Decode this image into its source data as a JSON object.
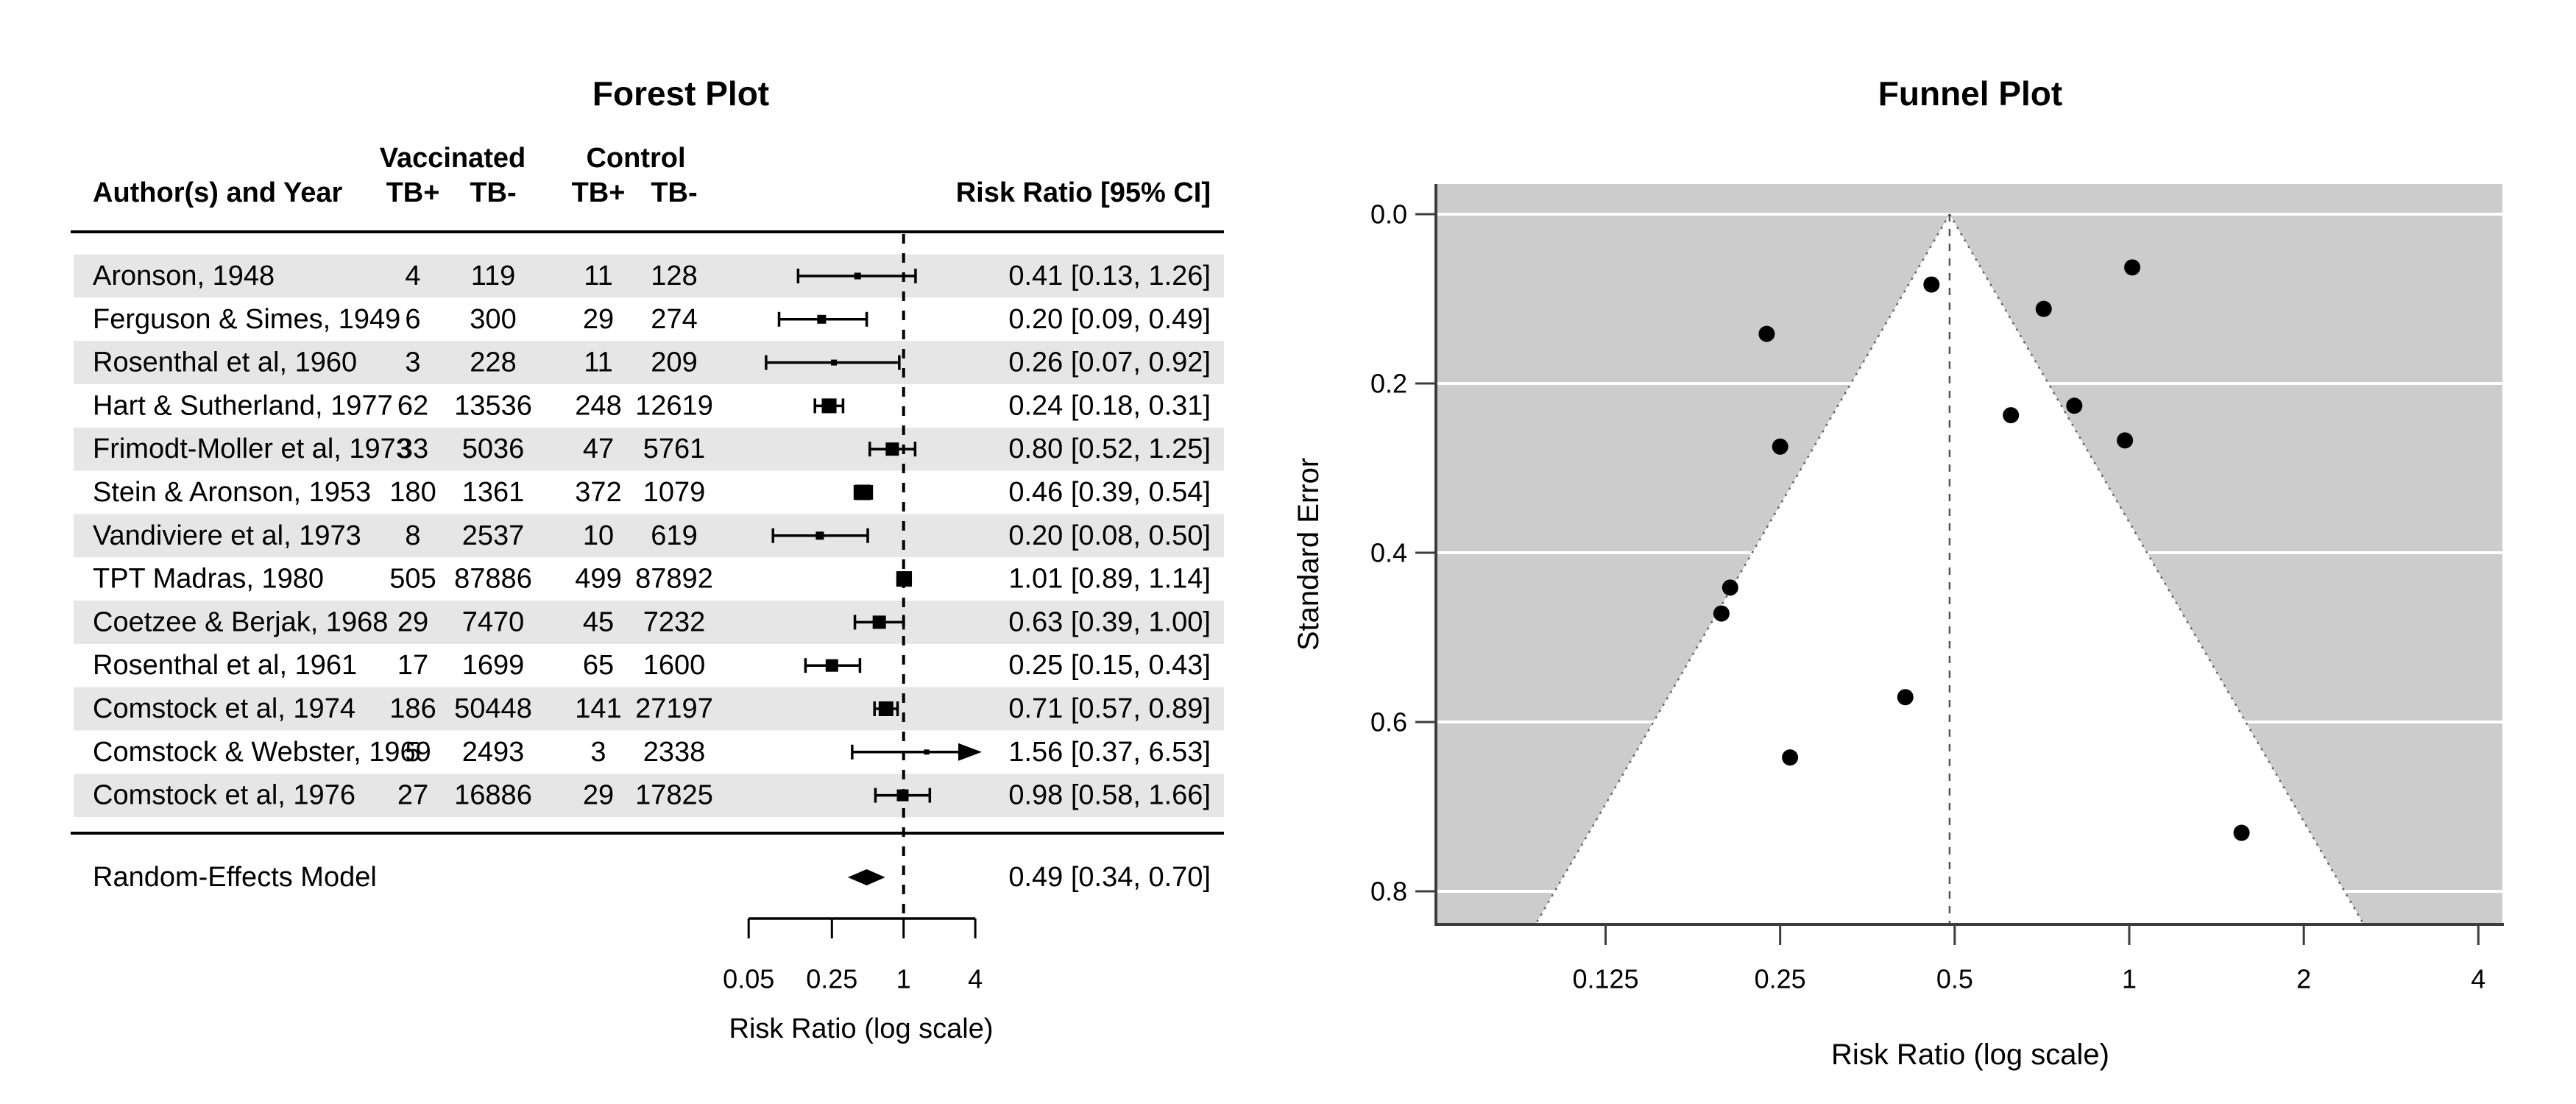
{
  "colors": {
    "background": "#ffffff",
    "stripe": "#e6e6e6",
    "funnel_bg": "#cccccc",
    "gridline": "#ffffff",
    "axis": "#000000",
    "funnel_axis": "#3c3c3c",
    "reference_line": "#555555",
    "funnel_edge": "#666666",
    "point": "#000000"
  },
  "chart_data": [
    {
      "type": "forest",
      "title": "Forest Plot",
      "xlabel": "Risk Ratio (log scale)",
      "xlim": [
        0.05,
        4
      ],
      "reference_value": 1,
      "legend_position": "none",
      "grid": false,
      "columns": {
        "author": "Author(s) and Year",
        "group1": "Vaccinated",
        "group2": "Control",
        "sub": [
          "TB+",
          "TB-",
          "TB+",
          "TB-"
        ],
        "effect": "Risk Ratio [95% CI]"
      },
      "x_ticks": [
        {
          "value": 0.05,
          "label": "0.05"
        },
        {
          "value": 0.25,
          "label": "0.25"
        },
        {
          "value": 1,
          "label": "1"
        },
        {
          "value": 4,
          "label": "4"
        }
      ],
      "studies": [
        {
          "author": "Aronson, 1948",
          "vac_tb_pos": 4,
          "vac_tb_neg": 119,
          "ctl_tb_pos": 11,
          "ctl_tb_neg": 128,
          "rr": 0.411,
          "ci_low": 0.13,
          "ci_high": 1.26,
          "effect_label": "0.41 [0.13, 1.26]",
          "size": 9,
          "arrow": false
        },
        {
          "author": "Ferguson & Simes, 1949",
          "vac_tb_pos": 6,
          "vac_tb_neg": 300,
          "ctl_tb_pos": 29,
          "ctl_tb_neg": 274,
          "rr": 0.205,
          "ci_low": 0.09,
          "ci_high": 0.49,
          "effect_label": "0.20 [0.09, 0.49]",
          "size": 12,
          "arrow": false
        },
        {
          "author": "Rosenthal et al, 1960",
          "vac_tb_pos": 3,
          "vac_tb_neg": 228,
          "ctl_tb_pos": 11,
          "ctl_tb_neg": 209,
          "rr": 0.26,
          "ci_low": 0.07,
          "ci_high": 0.92,
          "effect_label": "0.26 [0.07, 0.92]",
          "size": 8,
          "arrow": false
        },
        {
          "author": "Hart & Sutherland, 1977",
          "vac_tb_pos": 62,
          "vac_tb_neg": 13536,
          "ctl_tb_pos": 248,
          "ctl_tb_neg": 12619,
          "rr": 0.237,
          "ci_low": 0.18,
          "ci_high": 0.31,
          "effect_label": "0.24 [0.18, 0.31]",
          "size": 20,
          "arrow": false
        },
        {
          "author": "Frimodt-Moller et al, 1973",
          "vac_tb_pos": 33,
          "vac_tb_neg": 5036,
          "ctl_tb_pos": 47,
          "ctl_tb_neg": 5761,
          "rr": 0.804,
          "ci_low": 0.52,
          "ci_high": 1.25,
          "effect_label": "0.80 [0.52, 1.25]",
          "size": 18,
          "arrow": false
        },
        {
          "author": "Stein & Aronson, 1953",
          "vac_tb_pos": 180,
          "vac_tb_neg": 1361,
          "ctl_tb_pos": 372,
          "ctl_tb_neg": 1079,
          "rr": 0.456,
          "ci_low": 0.39,
          "ci_high": 0.54,
          "effect_label": "0.46 [0.39, 0.54]",
          "size": 21,
          "arrow": false
        },
        {
          "author": "Vandiviere et al, 1973",
          "vac_tb_pos": 8,
          "vac_tb_neg": 2537,
          "ctl_tb_pos": 10,
          "ctl_tb_neg": 619,
          "rr": 0.198,
          "ci_low": 0.08,
          "ci_high": 0.5,
          "effect_label": "0.20 [0.08, 0.50]",
          "size": 11,
          "arrow": false
        },
        {
          "author": "TPT Madras, 1980",
          "vac_tb_pos": 505,
          "vac_tb_neg": 87886,
          "ctl_tb_pos": 499,
          "ctl_tb_neg": 87892,
          "rr": 1.012,
          "ci_low": 0.89,
          "ci_high": 1.14,
          "effect_label": "1.01 [0.89, 1.14]",
          "size": 21,
          "arrow": false
        },
        {
          "author": "Coetzee & Berjak, 1968",
          "vac_tb_pos": 29,
          "vac_tb_neg": 7470,
          "ctl_tb_pos": 45,
          "ctl_tb_neg": 7232,
          "rr": 0.625,
          "ci_low": 0.39,
          "ci_high": 1.0,
          "effect_label": "0.63 [0.39, 1.00]",
          "size": 18,
          "arrow": false
        },
        {
          "author": "Rosenthal et al, 1961",
          "vac_tb_pos": 17,
          "vac_tb_neg": 1699,
          "ctl_tb_pos": 65,
          "ctl_tb_neg": 1600,
          "rr": 0.25,
          "ci_low": 0.15,
          "ci_high": 0.43,
          "effect_label": "0.25 [0.15, 0.43]",
          "size": 17,
          "arrow": false
        },
        {
          "author": "Comstock et al, 1974",
          "vac_tb_pos": 186,
          "vac_tb_neg": 50448,
          "ctl_tb_pos": 141,
          "ctl_tb_neg": 27197,
          "rr": 0.712,
          "ci_low": 0.57,
          "ci_high": 0.89,
          "effect_label": "0.71 [0.57, 0.89]",
          "size": 20,
          "arrow": false
        },
        {
          "author": "Comstock & Webster, 1969",
          "vac_tb_pos": 5,
          "vac_tb_neg": 2493,
          "ctl_tb_pos": 3,
          "ctl_tb_neg": 2338,
          "rr": 1.562,
          "ci_low": 0.37,
          "ci_high": 6.53,
          "effect_label": "1.56 [0.37, 6.53]",
          "size": 7,
          "arrow": true
        },
        {
          "author": "Comstock et al, 1976",
          "vac_tb_pos": 27,
          "vac_tb_neg": 16886,
          "ctl_tb_pos": 29,
          "ctl_tb_neg": 17825,
          "rr": 0.983,
          "ci_low": 0.58,
          "ci_high": 1.66,
          "effect_label": "0.98 [0.58, 1.66]",
          "size": 16,
          "arrow": false
        }
      ],
      "summary": {
        "label": "Random-Effects Model",
        "rr": 0.49,
        "ci_low": 0.34,
        "ci_high": 0.7,
        "effect_label": "0.49 [0.34, 0.70]"
      }
    },
    {
      "type": "funnel",
      "title": "Funnel Plot",
      "xlabel": "Risk Ratio (log scale)",
      "ylabel": "Standard Error",
      "xlim": [
        0.08,
        4.6
      ],
      "ylim": [
        -0.036,
        0.839
      ],
      "center": 0.49,
      "se_max": 0.839,
      "grid": true,
      "legend_position": "none",
      "x_ticks": [
        {
          "value": 0.125,
          "label": "0.125"
        },
        {
          "value": 0.25,
          "label": "0.25"
        },
        {
          "value": 0.5,
          "label": "0.5"
        },
        {
          "value": 1,
          "label": "1"
        },
        {
          "value": 2,
          "label": "2"
        },
        {
          "value": 4,
          "label": "4"
        }
      ],
      "y_ticks": [
        {
          "value": 0.0,
          "label": "0.0"
        },
        {
          "value": 0.2,
          "label": "0.2"
        },
        {
          "value": 0.4,
          "label": "0.4"
        },
        {
          "value": 0.6,
          "label": "0.6"
        },
        {
          "value": 0.8,
          "label": "0.8"
        }
      ],
      "points": [
        {
          "rr": 0.411,
          "se": 0.5706
        },
        {
          "rr": 0.205,
          "se": 0.4412
        },
        {
          "rr": 0.26,
          "se": 0.6419
        },
        {
          "rr": 0.237,
          "se": 0.1414
        },
        {
          "rr": 0.804,
          "se": 0.2263
        },
        {
          "rr": 0.456,
          "se": 0.0831
        },
        {
          "rr": 0.198,
          "se": 0.4718
        },
        {
          "rr": 1.012,
          "se": 0.0629
        },
        {
          "rr": 0.625,
          "se": 0.2375
        },
        {
          "rr": 0.25,
          "se": 0.2746
        },
        {
          "rr": 0.712,
          "se": 0.1119
        },
        {
          "rr": 1.562,
          "se": 0.7309
        },
        {
          "rr": 0.983,
          "se": 0.2673
        }
      ]
    }
  ]
}
